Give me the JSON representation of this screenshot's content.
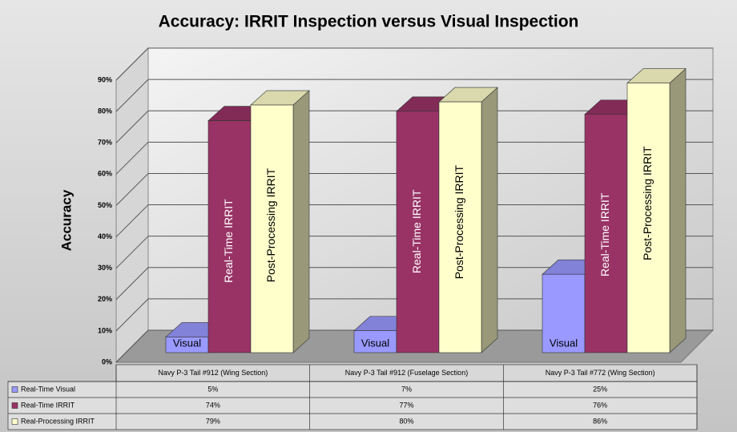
{
  "chart_data": {
    "type": "bar3d",
    "title": "Accuracy: IRRIT Inspection versus Visual Inspection",
    "y_label": "Accuracy",
    "categories": [
      "Navy P-3 Tail #912 (Wing Section)",
      "Navy P-3 Tail #912 (Fuselage Section)",
      "Navy P-3 Tail #772 (Wing Section)"
    ],
    "series": [
      {
        "name": "Real-Time Visual",
        "color": "#9999ff",
        "bar_label": "Visual",
        "values": [
          5,
          7,
          25
        ],
        "value_labels": [
          "5%",
          "7%",
          "25%"
        ]
      },
      {
        "name": "Real-Time IRRIT",
        "color": "#993366",
        "bar_label": "Real-Time IRRIT",
        "values": [
          74,
          77,
          76
        ],
        "value_labels": [
          "74%",
          "77%",
          "76%"
        ]
      },
      {
        "name": "Real-Processing IRRIT",
        "color": "#ffffcc",
        "bar_label": "Post-Processing IRRIT",
        "values": [
          79,
          80,
          86
        ],
        "value_labels": [
          "79%",
          "80%",
          "86%"
        ]
      }
    ],
    "ylim": [
      0,
      90
    ],
    "yticks": [
      {
        "value": 0,
        "label": "0%"
      },
      {
        "value": 10,
        "label": "10%"
      },
      {
        "value": 20,
        "label": "20%"
      },
      {
        "value": 30,
        "label": "30%"
      },
      {
        "value": 40,
        "label": "40%"
      },
      {
        "value": 50,
        "label": "50%"
      },
      {
        "value": 60,
        "label": "60%"
      },
      {
        "value": 70,
        "label": "70%"
      },
      {
        "value": 80,
        "label": "80%"
      },
      {
        "value": 90,
        "label": "90%"
      }
    ],
    "grid": true
  }
}
